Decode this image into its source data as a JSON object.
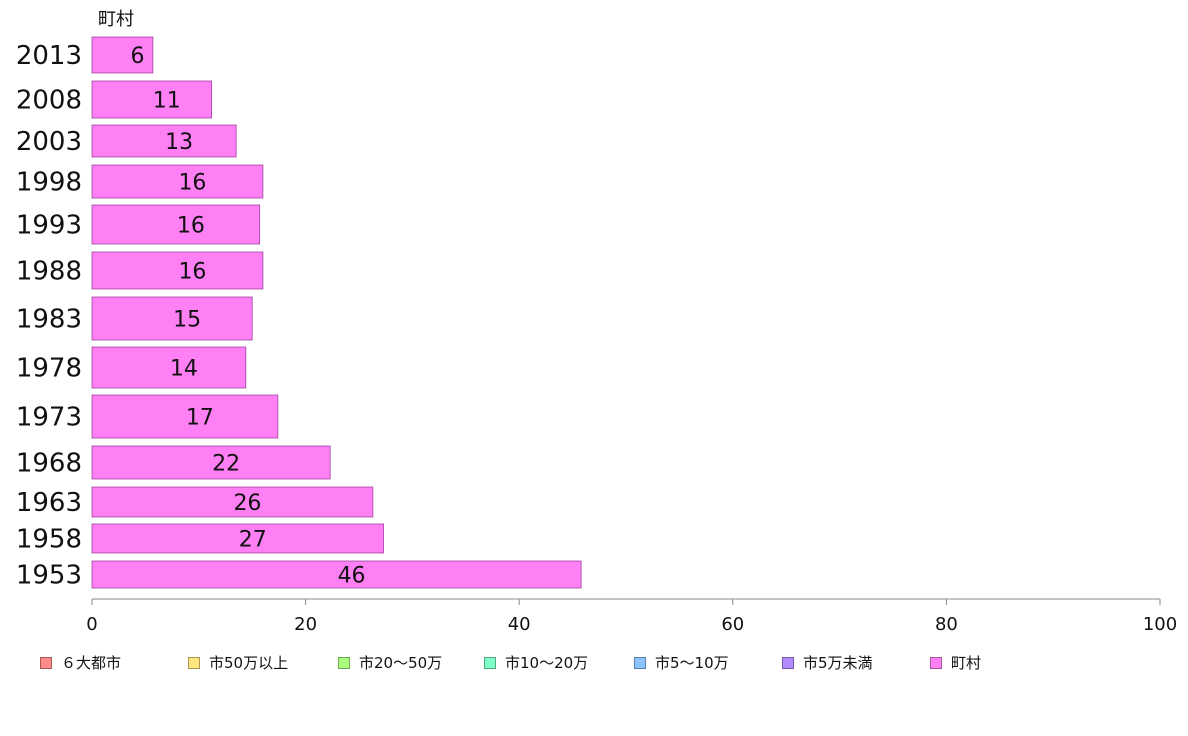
{
  "chart_data": {
    "type": "bar",
    "orientation": "horizontal",
    "title": "町村",
    "categories": [
      "2013",
      "2008",
      "2003",
      "1998",
      "1993",
      "1988",
      "1983",
      "1978",
      "1973",
      "1968",
      "1963",
      "1958",
      "1953"
    ],
    "series": [
      {
        "name": "町村",
        "color": "#ff7ff5",
        "values": [
          5.7,
          11.2,
          13.5,
          16.0,
          15.7,
          16.0,
          15.0,
          14.4,
          17.4,
          22.3,
          26.3,
          27.3,
          45.8
        ],
        "labels": [
          "6",
          "11",
          "13",
          "16",
          "16",
          "16",
          "15",
          "14",
          "17",
          "22",
          "26",
          "27",
          "46"
        ]
      }
    ],
    "xlim": [
      0,
      100
    ],
    "xticks": [
      "0",
      "20",
      "40",
      "60",
      "80",
      "100"
    ],
    "grid": false,
    "legend_position": "bottom",
    "legend": [
      {
        "label": "６大都市",
        "color": "#ff8a8a"
      },
      {
        "label": "市50万以上",
        "color": "#ffe680"
      },
      {
        "label": "市20～50万",
        "color": "#aaff80"
      },
      {
        "label": "市10～20万",
        "color": "#80ffc9"
      },
      {
        "label": "市5～10万",
        "color": "#8ac5ff"
      },
      {
        "label": "市5万未満",
        "color": "#b28aff"
      },
      {
        "label": "町村",
        "color": "#ff7ff5"
      }
    ]
  }
}
